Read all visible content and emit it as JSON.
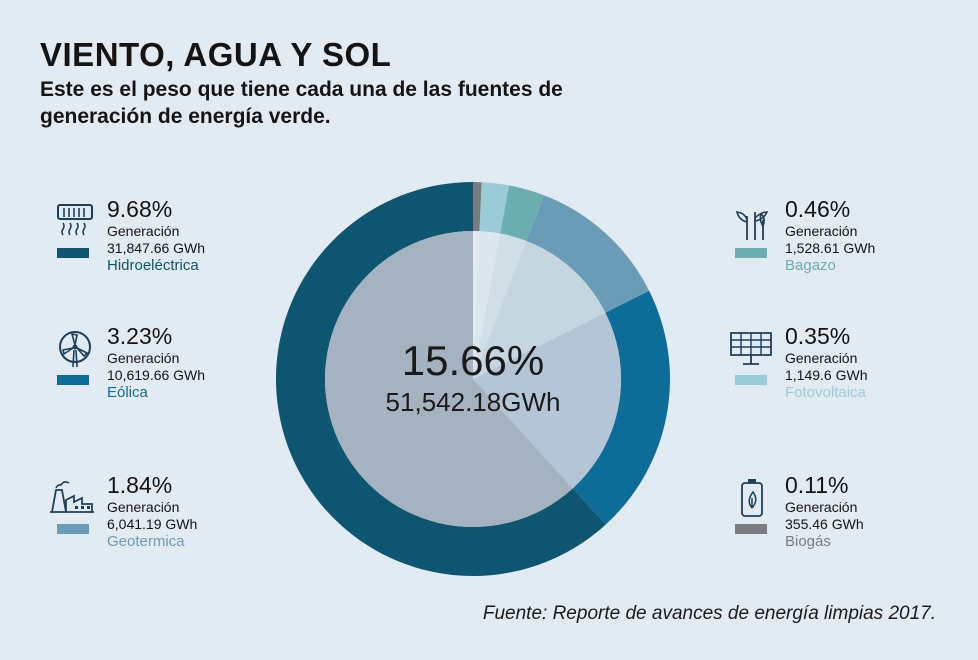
{
  "header": {
    "title": "VIENTO, AGUA Y SOL",
    "subtitle": "Este es el peso que tiene cada una de las fuentes de generación de energía verde."
  },
  "center": {
    "percent": "15.66%",
    "generation": "51,542.18GWh"
  },
  "legend": [
    {
      "key": "hidro",
      "icon": "hydro-dam-icon",
      "percent": "9.68%",
      "label": "Generación",
      "generation": "31,847.66 GWh",
      "name": "Hidroeléctrica",
      "color": "#0d5570"
    },
    {
      "key": "eolica",
      "icon": "wind-turbine-icon",
      "percent": "3.23%",
      "label": "Generación",
      "generation": "10,619.66 GWh",
      "name": "Eólica",
      "color": "#0e6d98"
    },
    {
      "key": "geo",
      "icon": "geothermal-plant-icon",
      "percent": "1.84%",
      "label": "Generación",
      "generation": "6,041.19 GWh",
      "name": "Geotermica",
      "color": "#6a9cb8"
    },
    {
      "key": "bagazo",
      "icon": "sugarcane-icon",
      "percent": "0.46%",
      "label": "Generación",
      "generation": "1,528.61 GWh",
      "name": "Bagazo",
      "color": "#6aaeb0"
    },
    {
      "key": "foto",
      "icon": "solar-panel-icon",
      "percent": "0.35%",
      "label": "Generación",
      "generation": "1,149.6 GWh",
      "name": "Fotovoltaica",
      "color": "#9ccbd8"
    },
    {
      "key": "biogas",
      "icon": "battery-leaf-icon",
      "percent": "0.11%",
      "label": "Generación",
      "generation": "355.46 GWh",
      "name": "Biogás",
      "color": "#7b7c80"
    }
  ],
  "source": "Fuente: Reporte de avances de energía limpias 2017.",
  "chart_data": {
    "type": "pie",
    "title": "VIENTO, AGUA Y SOL",
    "center_label": "15.66%",
    "total_gwh": 51542.18,
    "categories": [
      "Hidroeléctrica",
      "Eólica",
      "Geotermica",
      "Bagazo",
      "Fotovoltaica",
      "Biogás"
    ],
    "values_percent": [
      9.68,
      3.23,
      1.84,
      0.46,
      0.35,
      0.11
    ],
    "values_gwh": [
      31847.66,
      10619.66,
      6041.19,
      1528.61,
      1149.6,
      355.46
    ],
    "colors": [
      "#0d5570",
      "#0e6d98",
      "#6a9cb8",
      "#6aaeb0",
      "#9ccbd8",
      "#7b7c80"
    ]
  }
}
